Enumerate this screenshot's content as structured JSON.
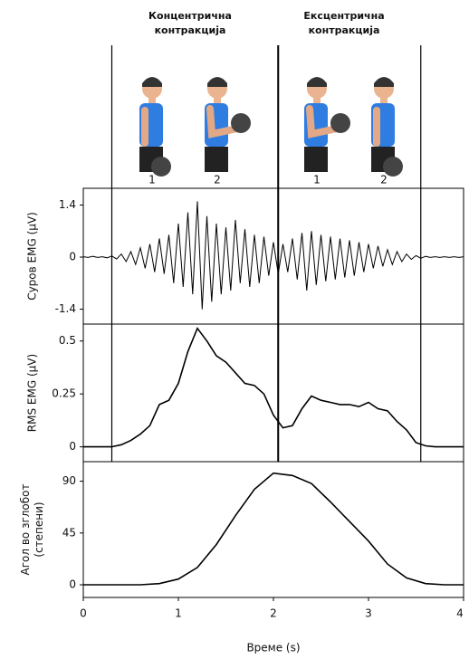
{
  "phases": [
    {
      "title": [
        "Концентрична",
        "контракција"
      ],
      "steps": [
        "1",
        "2"
      ]
    },
    {
      "title": [
        "Ексцентрична",
        "контракција"
      ],
      "steps": [
        "1",
        "2"
      ]
    }
  ],
  "phase_lines": [
    0.3,
    2.05,
    3.55
  ],
  "chart_data": [
    {
      "type": "line",
      "ylabel": [
        "Суров EMG (μV)"
      ],
      "color": "#000000",
      "x": [
        0,
        0.05,
        0.1,
        0.15,
        0.2,
        0.25,
        0.3,
        0.35,
        0.4,
        0.45,
        0.5,
        0.55,
        0.6,
        0.65,
        0.7,
        0.75,
        0.8,
        0.85,
        0.9,
        0.95,
        1,
        1.05,
        1.1,
        1.15,
        1.2,
        1.25,
        1.3,
        1.35,
        1.4,
        1.45,
        1.5,
        1.55,
        1.6,
        1.65,
        1.7,
        1.75,
        1.8,
        1.85,
        1.9,
        1.95,
        2,
        2.05,
        2.1,
        2.15,
        2.2,
        2.25,
        2.3,
        2.35,
        2.4,
        2.45,
        2.5,
        2.55,
        2.6,
        2.65,
        2.7,
        2.75,
        2.8,
        2.85,
        2.9,
        2.95,
        3,
        3.05,
        3.1,
        3.15,
        3.2,
        3.25,
        3.3,
        3.35,
        3.4,
        3.45,
        3.5,
        3.55,
        3.6,
        3.65,
        3.7,
        3.75,
        3.8,
        3.85,
        3.9,
        3.95,
        4
      ],
      "values": [
        0.01,
        -0.01,
        0.02,
        -0.01,
        0.01,
        -0.02,
        0.03,
        -0.05,
        0.08,
        -0.12,
        0.15,
        -0.2,
        0.25,
        -0.3,
        0.35,
        -0.4,
        0.5,
        -0.45,
        0.6,
        -0.7,
        0.9,
        -0.8,
        1.2,
        -1.0,
        1.5,
        -1.4,
        1.1,
        -1.2,
        0.9,
        -1.0,
        0.8,
        -0.9,
        1.0,
        -0.7,
        0.75,
        -0.8,
        0.6,
        -0.7,
        0.55,
        -0.5,
        0.4,
        -0.45,
        0.35,
        -0.4,
        0.5,
        -0.6,
        0.65,
        -0.9,
        0.7,
        -0.75,
        0.6,
        -0.65,
        0.55,
        -0.6,
        0.5,
        -0.55,
        0.45,
        -0.5,
        0.4,
        -0.4,
        0.35,
        -0.3,
        0.3,
        -0.25,
        0.2,
        -0.2,
        0.15,
        -0.12,
        0.08,
        -0.06,
        0.04,
        -0.03,
        0.02,
        -0.01,
        0.01,
        -0.01,
        0.01,
        -0.01,
        0.01,
        -0.01,
        0.01
      ],
      "xlim": [
        0,
        4
      ],
      "ylim": [
        -1.8,
        1.85
      ],
      "yticks": [
        -1.4,
        0,
        1.4
      ]
    },
    {
      "type": "line",
      "ylabel": [
        "RMS EMG (μV)"
      ],
      "color": "#000000",
      "x": [
        0,
        0.1,
        0.2,
        0.3,
        0.4,
        0.5,
        0.6,
        0.7,
        0.8,
        0.9,
        1,
        1.1,
        1.2,
        1.3,
        1.4,
        1.5,
        1.6,
        1.7,
        1.8,
        1.9,
        2,
        2.1,
        2.2,
        2.3,
        2.4,
        2.5,
        2.6,
        2.7,
        2.8,
        2.9,
        3,
        3.1,
        3.2,
        3.3,
        3.4,
        3.5,
        3.6,
        3.7,
        3.8,
        3.9,
        4
      ],
      "values": [
        0,
        0,
        0,
        0,
        0.01,
        0.03,
        0.06,
        0.1,
        0.2,
        0.22,
        0.3,
        0.45,
        0.56,
        0.5,
        0.43,
        0.4,
        0.35,
        0.3,
        0.29,
        0.25,
        0.15,
        0.09,
        0.1,
        0.18,
        0.24,
        0.22,
        0.21,
        0.2,
        0.2,
        0.19,
        0.21,
        0.18,
        0.17,
        0.12,
        0.08,
        0.02,
        0.005,
        0,
        0,
        0,
        0
      ],
      "xlim": [
        0,
        4
      ],
      "ylim": [
        -0.07,
        0.58
      ],
      "yticks": [
        0,
        0.25,
        0.5
      ]
    },
    {
      "type": "line",
      "ylabel": [
        "Агол во зглобот",
        "(степени)"
      ],
      "xlabel": "Време (s)",
      "color": "#000000",
      "x": [
        0,
        0.2,
        0.4,
        0.6,
        0.8,
        1,
        1.2,
        1.4,
        1.6,
        1.8,
        2,
        2.2,
        2.4,
        2.6,
        2.8,
        3,
        3.2,
        3.4,
        3.6,
        3.8,
        4
      ],
      "values": [
        0,
        0,
        0,
        0,
        1,
        5,
        15,
        35,
        60,
        83,
        97,
        95,
        88,
        72,
        55,
        38,
        18,
        6,
        1,
        0,
        0
      ],
      "xlim": [
        0,
        4
      ],
      "xticks": [
        0,
        1,
        2,
        3,
        4
      ],
      "ylim": [
        -11,
        107
      ],
      "yticks": [
        0,
        45,
        90
      ]
    }
  ]
}
